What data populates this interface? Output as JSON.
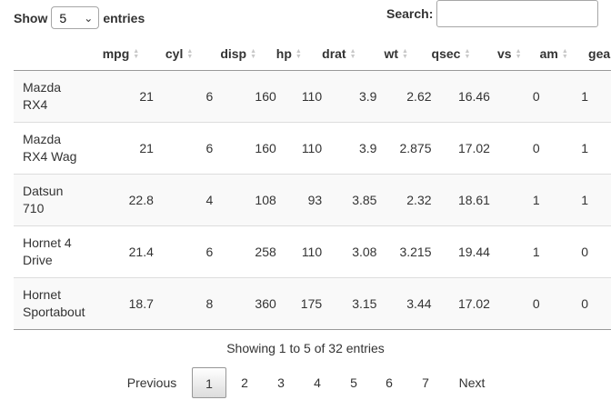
{
  "length_menu": {
    "show": "Show",
    "value": "5",
    "entries": "entries"
  },
  "search": {
    "label": "Search:",
    "value": ""
  },
  "columns": [
    "mpg",
    "cyl",
    "disp",
    "hp",
    "drat",
    "wt",
    "qsec",
    "vs",
    "am",
    "gea"
  ],
  "rows": [
    {
      "name1": "Mazda",
      "name2": "RX4",
      "cells": [
        "21",
        "6",
        "160",
        "110",
        "3.9",
        "2.62",
        "16.46",
        "0",
        "1"
      ]
    },
    {
      "name1": "Mazda",
      "name2": "RX4 Wag",
      "cells": [
        "21",
        "6",
        "160",
        "110",
        "3.9",
        "2.875",
        "17.02",
        "0",
        "1"
      ]
    },
    {
      "name1": "Datsun",
      "name2": "710",
      "cells": [
        "22.8",
        "4",
        "108",
        "93",
        "3.85",
        "2.32",
        "18.61",
        "1",
        "1"
      ]
    },
    {
      "name1": "Hornet 4",
      "name2": "Drive",
      "cells": [
        "21.4",
        "6",
        "258",
        "110",
        "3.08",
        "3.215",
        "19.44",
        "1",
        "0"
      ]
    },
    {
      "name1": "Hornet",
      "name2": "Sportabout",
      "cells": [
        "18.7",
        "8",
        "360",
        "175",
        "3.15",
        "3.44",
        "17.02",
        "0",
        "0"
      ]
    }
  ],
  "info": "Showing 1 to 5 of 32 entries",
  "pagination": {
    "previous": "Previous",
    "pages": [
      "1",
      "2",
      "3",
      "4",
      "5",
      "6",
      "7"
    ],
    "current": "1",
    "next": "Next"
  }
}
